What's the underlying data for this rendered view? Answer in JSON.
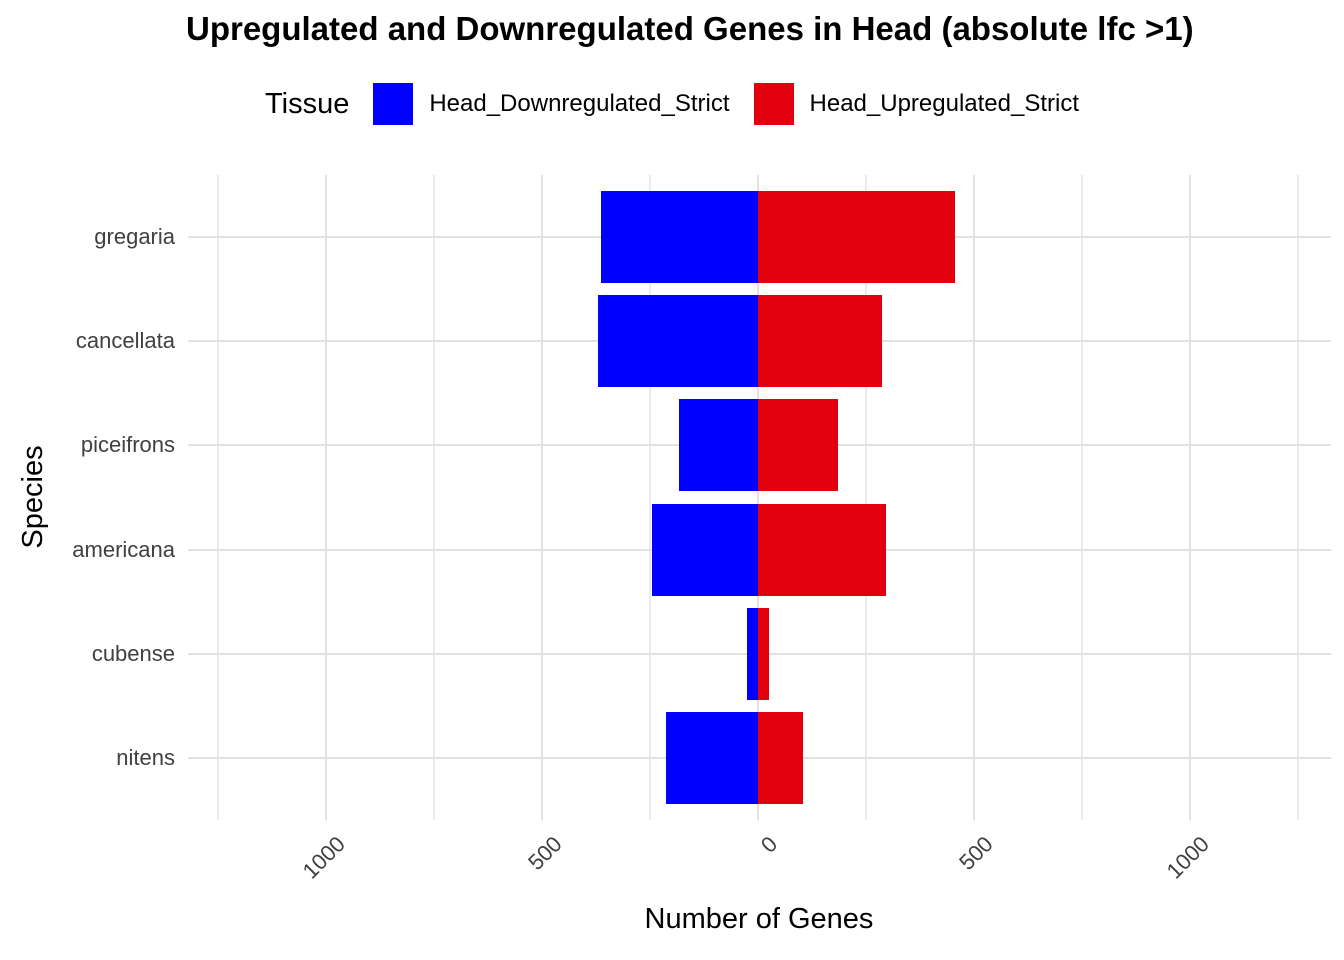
{
  "title": "Upregulated and Downregulated Genes in Head (absolute lfc >1)",
  "legend": {
    "title": "Tissue",
    "items": [
      {
        "label": "Head_Downregulated_Strict",
        "color": "#0000FF"
      },
      {
        "label": "Head_Upregulated_Strict",
        "color": "#E2000F"
      }
    ]
  },
  "chart_data": {
    "type": "bar",
    "orientation": "horizontal-diverging",
    "title": "Upregulated and Downregulated Genes in Head (absolute lfc >1)",
    "xlabel": "Number of Genes",
    "ylabel": "Species",
    "categories": [
      "gregaria",
      "cancellata",
      "piceifrons",
      "americana",
      "cubense",
      "nitens"
    ],
    "series": [
      {
        "name": "Head_Downregulated_Strict",
        "color": "#0000FF",
        "side": "negative",
        "values": [
          365,
          370,
          183,
          247,
          27,
          213
        ]
      },
      {
        "name": "Head_Upregulated_Strict",
        "color": "#E2000F",
        "side": "positive",
        "values": [
          455,
          286,
          185,
          297,
          25,
          103
        ]
      }
    ],
    "x_ticks": [
      {
        "value": -1000,
        "label": "1000"
      },
      {
        "value": -500,
        "label": "500"
      },
      {
        "value": 0,
        "label": "0"
      },
      {
        "value": 500,
        "label": "500"
      },
      {
        "value": 1000,
        "label": "1000"
      }
    ],
    "xlim": [
      -1320,
      1326
    ],
    "gridline_step": 250,
    "grid": "on",
    "legend_position": "top",
    "colors": {
      "grid_major": "#E2E2E2",
      "grid_minor": "#EBEBEB",
      "tick_text": "#404040",
      "axis_title_text": "#000000"
    }
  }
}
